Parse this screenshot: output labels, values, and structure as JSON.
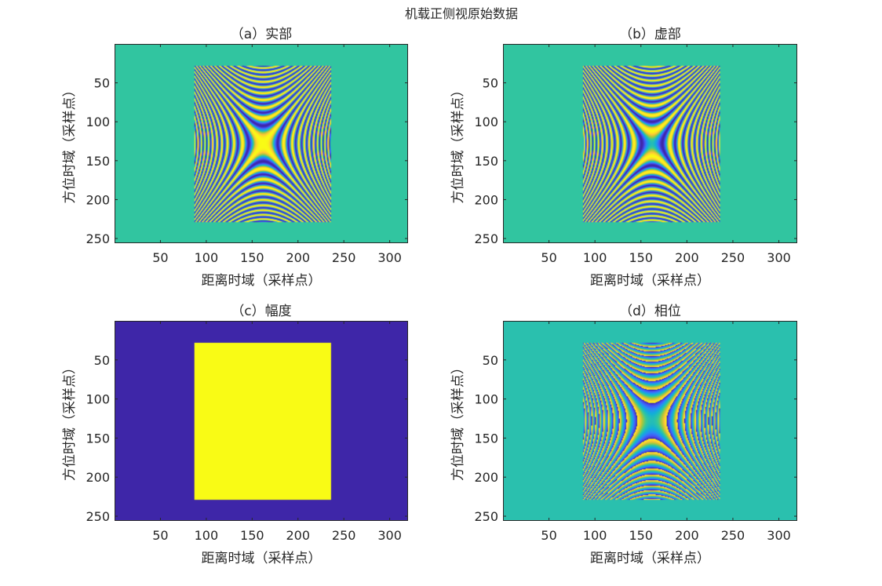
{
  "figure_title": "机载正侧视原始数据",
  "colors": {
    "background_teal": "#1ac0b4",
    "phase_background": "#0bbbb8",
    "amplitude_low": "#3b2ca3",
    "amplitude_high": "#f8f81a",
    "axis": "#262626"
  },
  "chart_data": [
    {
      "type": "heatmap",
      "title": "（a）实部",
      "xlabel": "距离时域（采样点）",
      "ylabel": "方位时域（采样点）",
      "xlim": [
        0,
        320
      ],
      "ylim": [
        0,
        256
      ],
      "xticks": [
        50,
        100,
        150,
        200,
        250,
        300
      ],
      "yticks": [
        50,
        100,
        150,
        200,
        250
      ],
      "y_reversed": true,
      "colormap": "parula",
      "pattern": "real",
      "signal_region": {
        "x": [
          87,
          236
        ],
        "y": [
          28,
          229
        ]
      },
      "center": [
        162,
        128
      ]
    },
    {
      "type": "heatmap",
      "title": "（b）虚部",
      "xlabel": "距离时域（采样点）",
      "ylabel": "方位时域（采样点）",
      "xlim": [
        0,
        320
      ],
      "ylim": [
        0,
        256
      ],
      "xticks": [
        50,
        100,
        150,
        200,
        250,
        300
      ],
      "yticks": [
        50,
        100,
        150,
        200,
        250
      ],
      "y_reversed": true,
      "colormap": "parula",
      "pattern": "imag",
      "signal_region": {
        "x": [
          87,
          236
        ],
        "y": [
          28,
          229
        ]
      },
      "center": [
        162,
        128
      ]
    },
    {
      "type": "heatmap",
      "title": "（c）幅度",
      "xlabel": "距离时域（采样点）",
      "ylabel": "方位时域（采样点）",
      "xlim": [
        0,
        320
      ],
      "ylim": [
        0,
        256
      ],
      "xticks": [
        50,
        100,
        150,
        200,
        250,
        300
      ],
      "yticks": [
        50,
        100,
        150,
        200,
        250
      ],
      "y_reversed": true,
      "colormap": "parula",
      "pattern": "amplitude",
      "signal_region": {
        "x": [
          87,
          236
        ],
        "y": [
          28,
          229
        ]
      },
      "center": [
        162,
        128
      ]
    },
    {
      "type": "heatmap",
      "title": "（d）相位",
      "xlabel": "距离时域（采样点）",
      "ylabel": "方位时域（采样点）",
      "xlim": [
        0,
        320
      ],
      "ylim": [
        0,
        256
      ],
      "xticks": [
        50,
        100,
        150,
        200,
        250,
        300
      ],
      "yticks": [
        50,
        100,
        150,
        200,
        250
      ],
      "y_reversed": true,
      "colormap": "parula",
      "pattern": "phase",
      "signal_region": {
        "x": [
          87,
          236
        ],
        "y": [
          28,
          229
        ]
      },
      "center": [
        162,
        128
      ]
    }
  ]
}
